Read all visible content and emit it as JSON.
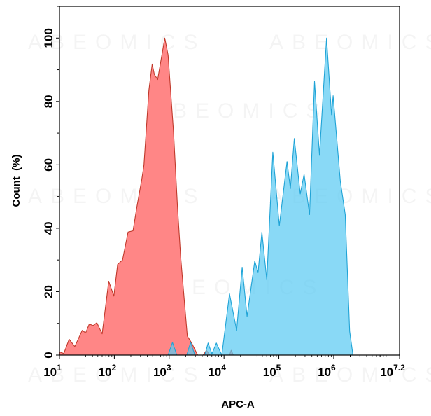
{
  "chart_data": {
    "type": "area",
    "title": "",
    "xlabel": "APC-A",
    "ylabel": "Count  (%)",
    "xscale": "log",
    "xlim": [
      10,
      15848932
    ],
    "ylim": [
      0,
      110
    ],
    "x_tick_labels": [
      {
        "base": "10",
        "exp": "1",
        "value": 10
      },
      {
        "base": "10",
        "exp": "2",
        "value": 100
      },
      {
        "base": "10",
        "exp": "3",
        "value": 1000
      },
      {
        "base": "10",
        "exp": "4",
        "value": 10000
      },
      {
        "base": "10",
        "exp": "5",
        "value": 100000
      },
      {
        "base": "10",
        "exp": "6",
        "value": 1000000
      },
      {
        "base": "10",
        "exp": "7.2",
        "value": 15848932
      }
    ],
    "y_ticks": [
      "0",
      "20",
      "40",
      "60",
      "80",
      "100"
    ],
    "grid": false,
    "legend": "none",
    "watermark": "ABEOMICS",
    "series": [
      {
        "color_fill": "#ff7f7f",
        "color_line": "#c0392b",
        "points": [
          [
            10,
            1
          ],
          [
            12,
            0.5
          ],
          [
            15,
            5
          ],
          [
            19,
            2.7
          ],
          [
            26,
            7.8
          ],
          [
            30,
            7
          ],
          [
            35,
            9.8
          ],
          [
            41,
            9.3
          ],
          [
            48,
            10.2
          ],
          [
            60,
            6.7
          ],
          [
            79,
            23.3
          ],
          [
            98,
            18.6
          ],
          [
            115,
            28.6
          ],
          [
            141,
            30
          ],
          [
            178,
            38.8
          ],
          [
            219,
            39.2
          ],
          [
            257,
            46.6
          ],
          [
            316,
            55.4
          ],
          [
            347,
            59.9
          ],
          [
            427,
            83.6
          ],
          [
            490,
            91.8
          ],
          [
            537,
            88.5
          ],
          [
            617,
            86.9
          ],
          [
            832,
            100
          ],
          [
            955,
            94.7
          ],
          [
            1200,
            70.3
          ],
          [
            1410,
            47.4
          ],
          [
            1620,
            31
          ],
          [
            2140,
            6
          ],
          [
            2570,
            3.8
          ],
          [
            3310,
            0
          ],
          [
            4170,
            0
          ],
          [
            4790,
            1.5
          ],
          [
            5500,
            0
          ],
          [
            12600,
            0
          ],
          [
            13500,
            1.5
          ],
          [
            14800,
            0
          ]
        ]
      },
      {
        "color_fill": "#5ccbf2",
        "color_line": "#1fa3d6",
        "points": [
          [
            955,
            0
          ],
          [
            1150,
            4
          ],
          [
            1380,
            0
          ],
          [
            2090,
            0
          ],
          [
            2450,
            4
          ],
          [
            2950,
            0
          ],
          [
            4470,
            0
          ],
          [
            5130,
            3.8
          ],
          [
            6030,
            0.4
          ],
          [
            7240,
            3.8
          ],
          [
            9120,
            0
          ],
          [
            12600,
            19.3
          ],
          [
            17000,
            7.8
          ],
          [
            21400,
            27.7
          ],
          [
            26300,
            12.2
          ],
          [
            36300,
            29.7
          ],
          [
            41700,
            26
          ],
          [
            49000,
            38.8
          ],
          [
            60300,
            23.7
          ],
          [
            77600,
            64
          ],
          [
            102000,
            40.8
          ],
          [
            141000,
            61
          ],
          [
            162000,
            52.5
          ],
          [
            191000,
            68.3
          ],
          [
            245000,
            50.8
          ],
          [
            288000,
            57
          ],
          [
            363000,
            44.3
          ],
          [
            447000,
            86.3
          ],
          [
            550000,
            63
          ],
          [
            741000,
            100
          ],
          [
            912000,
            75.8
          ],
          [
            977000,
            81.8
          ],
          [
            1320000,
            54.8
          ],
          [
            1620000,
            44.3
          ],
          [
            1950000,
            7.5
          ],
          [
            2240000,
            0
          ]
        ]
      }
    ]
  }
}
